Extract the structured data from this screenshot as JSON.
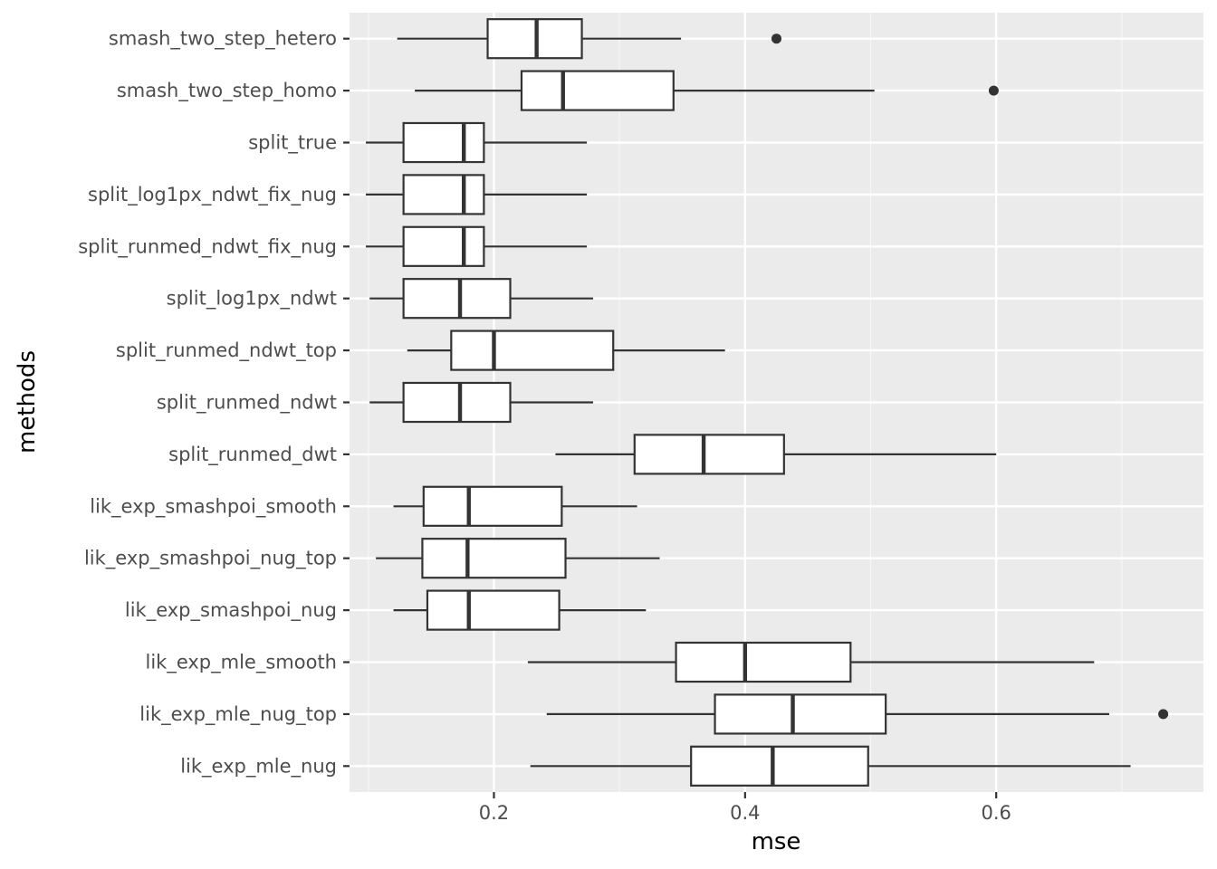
{
  "chart_data": {
    "type": "boxplot",
    "orientation": "horizontal",
    "title": "",
    "xlabel": "mse",
    "ylabel": "methods",
    "xlim": [
      0.085,
      0.765
    ],
    "x_ticks": [
      {
        "value": 0.2,
        "label": "0.2"
      },
      {
        "value": 0.4,
        "label": "0.4"
      },
      {
        "value": 0.6,
        "label": "0.6"
      }
    ],
    "x_minor_ticks": [
      0.1,
      0.3,
      0.5,
      0.7
    ],
    "grid": true,
    "categories": [
      "smash_two_step_hetero",
      "smash_two_step_homo",
      "split_true",
      "split_log1px_ndwt_fix_nug",
      "split_runmed_ndwt_fix_nug",
      "split_log1px_ndwt",
      "split_runmed_ndwt_top",
      "split_runmed_ndwt",
      "split_runmed_dwt",
      "lik_exp_smashpoi_smooth",
      "lik_exp_smashpoi_nug_top",
      "lik_exp_smashpoi_nug",
      "lik_exp_mle_smooth",
      "lik_exp_mle_nug_top",
      "lik_exp_mle_nug"
    ],
    "boxes": [
      {
        "min": 0.123,
        "q1": 0.195,
        "median": 0.234,
        "q3": 0.27,
        "max": 0.349,
        "outliers": [
          0.425
        ]
      },
      {
        "min": 0.137,
        "q1": 0.222,
        "median": 0.255,
        "q3": 0.343,
        "max": 0.503,
        "outliers": [
          0.598
        ]
      },
      {
        "min": 0.098,
        "q1": 0.128,
        "median": 0.176,
        "q3": 0.192,
        "max": 0.274,
        "outliers": []
      },
      {
        "min": 0.098,
        "q1": 0.128,
        "median": 0.176,
        "q3": 0.192,
        "max": 0.274,
        "outliers": []
      },
      {
        "min": 0.098,
        "q1": 0.128,
        "median": 0.176,
        "q3": 0.192,
        "max": 0.274,
        "outliers": []
      },
      {
        "min": 0.101,
        "q1": 0.128,
        "median": 0.173,
        "q3": 0.213,
        "max": 0.279,
        "outliers": []
      },
      {
        "min": 0.131,
        "q1": 0.166,
        "median": 0.2,
        "q3": 0.295,
        "max": 0.384,
        "outliers": []
      },
      {
        "min": 0.101,
        "q1": 0.128,
        "median": 0.173,
        "q3": 0.213,
        "max": 0.279,
        "outliers": []
      },
      {
        "min": 0.249,
        "q1": 0.312,
        "median": 0.367,
        "q3": 0.431,
        "max": 0.6,
        "outliers": []
      },
      {
        "min": 0.12,
        "q1": 0.144,
        "median": 0.18,
        "q3": 0.254,
        "max": 0.314,
        "outliers": []
      },
      {
        "min": 0.106,
        "q1": 0.143,
        "median": 0.179,
        "q3": 0.257,
        "max": 0.332,
        "outliers": []
      },
      {
        "min": 0.12,
        "q1": 0.147,
        "median": 0.18,
        "q3": 0.252,
        "max": 0.321,
        "outliers": []
      },
      {
        "min": 0.227,
        "q1": 0.345,
        "median": 0.4,
        "q3": 0.484,
        "max": 0.678,
        "outliers": []
      },
      {
        "min": 0.242,
        "q1": 0.376,
        "median": 0.438,
        "q3": 0.512,
        "max": 0.69,
        "outliers": [
          0.733
        ]
      },
      {
        "min": 0.229,
        "q1": 0.357,
        "median": 0.422,
        "q3": 0.498,
        "max": 0.707,
        "outliers": []
      }
    ],
    "colors": {
      "panel": "#ebebeb",
      "grid_major": "#ffffff",
      "grid_minor": "#f7f7f7",
      "box_fill": "#ffffff",
      "box_line": "#333333",
      "tick_text": "#4d4d4d",
      "axis_title": "#000000"
    }
  }
}
